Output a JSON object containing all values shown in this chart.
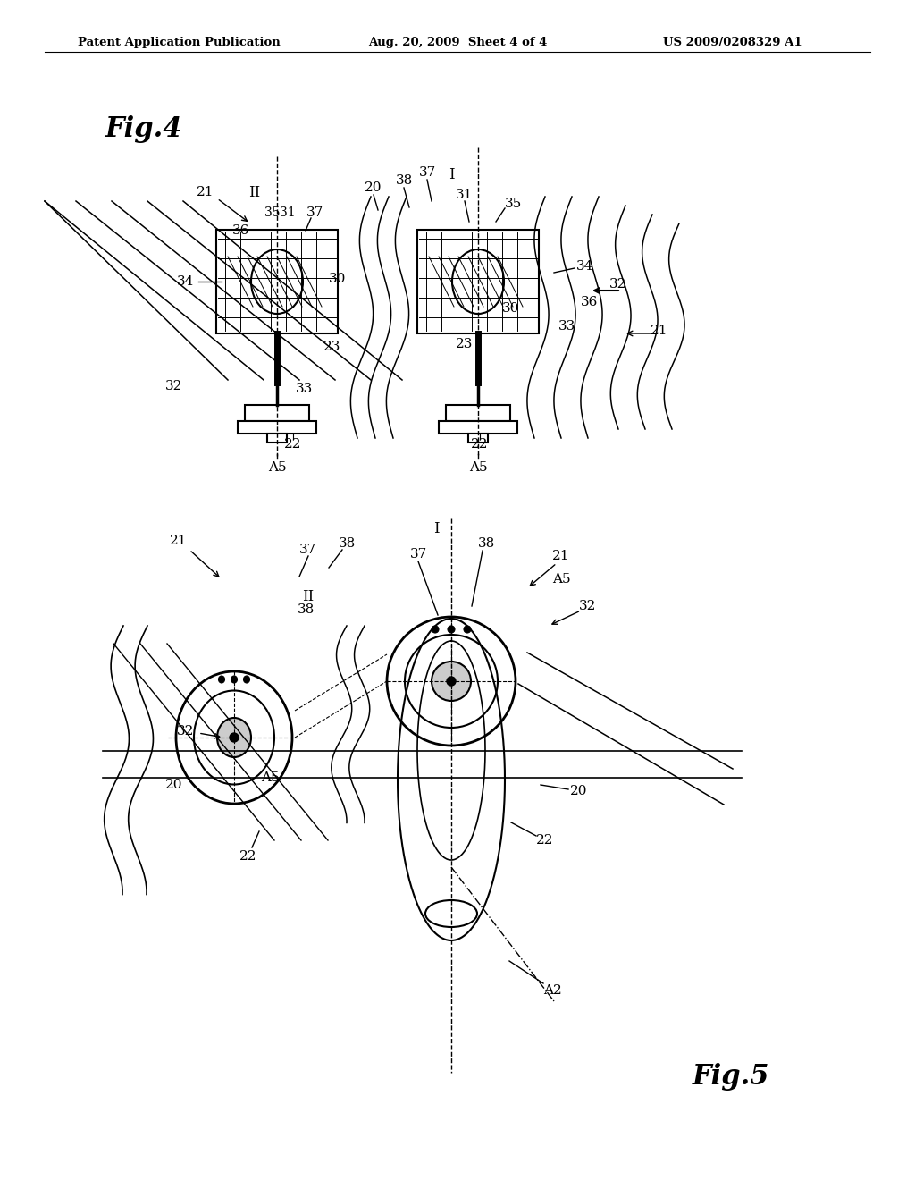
{
  "bg_color": "#ffffff",
  "line_color": "#000000",
  "header_left": "Patent Application Publication",
  "header_center": "Aug. 20, 2009  Sheet 4 of 4",
  "header_right": "US 2009/0208329 A1",
  "fig4_label": "Fig.4",
  "fig5_label": "Fig.5"
}
